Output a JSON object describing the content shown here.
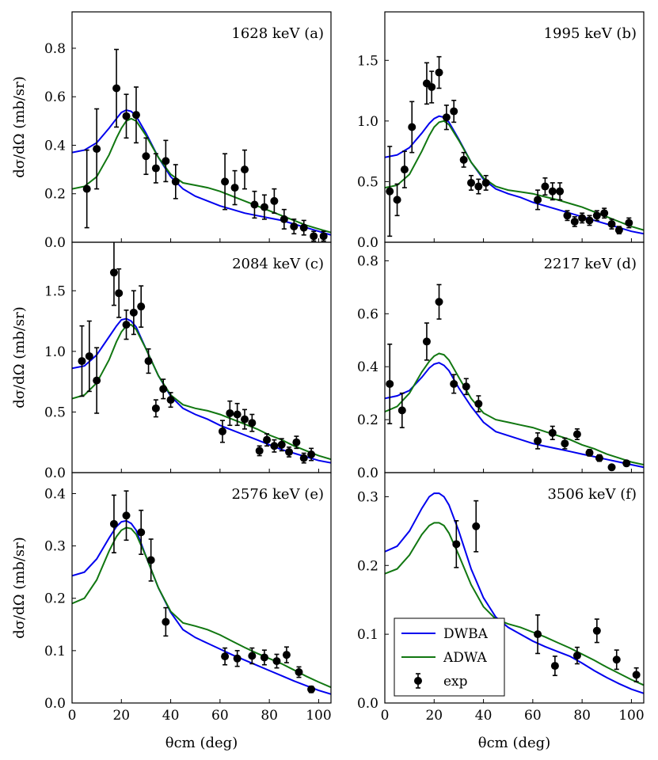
{
  "chart_data": {
    "type": "multi-panel scatter+line",
    "shared_xlabel": "θcm (deg)",
    "shared_ylabel": "dσ/dΩ (mb/sr)",
    "xlim": [
      0,
      105
    ],
    "xticks": [
      0,
      20,
      40,
      60,
      80,
      100
    ],
    "series_names": {
      "dwba": "DWBA",
      "adwa": "ADWA",
      "exp": "exp"
    },
    "colors": {
      "dwba": "#0000ee",
      "adwa": "#117711",
      "exp": "#000000"
    },
    "panels": [
      {
        "label": "1628 keV (a)",
        "ylim": [
          0,
          0.95
        ],
        "yticks": [
          0.0,
          0.2,
          0.4,
          0.6,
          0.8
        ],
        "ytick_labels": [
          "0.0",
          "0.2",
          "0.4",
          "0.6",
          "0.8"
        ],
        "dwba": {
          "x": [
            0,
            5,
            10,
            15,
            18,
            20,
            22,
            24,
            26,
            30,
            35,
            40,
            45,
            50,
            55,
            60,
            65,
            70,
            75,
            80,
            85,
            90,
            95,
            100,
            105
          ],
          "y": [
            0.37,
            0.38,
            0.41,
            0.47,
            0.51,
            0.535,
            0.545,
            0.54,
            0.52,
            0.45,
            0.35,
            0.27,
            0.22,
            0.19,
            0.17,
            0.15,
            0.135,
            0.12,
            0.11,
            0.1,
            0.09,
            0.075,
            0.06,
            0.045,
            0.03
          ]
        },
        "adwa": {
          "x": [
            0,
            5,
            10,
            15,
            18,
            20,
            22,
            24,
            26,
            30,
            35,
            40,
            45,
            50,
            55,
            60,
            65,
            70,
            75,
            80,
            85,
            90,
            95,
            100,
            105
          ],
          "y": [
            0.22,
            0.23,
            0.27,
            0.36,
            0.43,
            0.47,
            0.5,
            0.51,
            0.5,
            0.44,
            0.35,
            0.28,
            0.245,
            0.235,
            0.225,
            0.21,
            0.19,
            0.17,
            0.15,
            0.13,
            0.11,
            0.09,
            0.07,
            0.055,
            0.04
          ]
        },
        "exp": {
          "x": [
            6,
            10,
            18,
            22,
            26,
            30,
            34,
            38,
            42,
            62,
            66,
            70,
            74,
            78,
            82,
            86,
            90,
            94,
            98,
            102
          ],
          "y": [
            0.22,
            0.385,
            0.635,
            0.52,
            0.525,
            0.355,
            0.305,
            0.335,
            0.25,
            0.25,
            0.225,
            0.3,
            0.155,
            0.145,
            0.17,
            0.095,
            0.065,
            0.06,
            0.025,
            0.025
          ],
          "err": [
            0.16,
            0.165,
            0.16,
            0.09,
            0.115,
            0.075,
            0.06,
            0.085,
            0.07,
            0.115,
            0.07,
            0.08,
            0.055,
            0.05,
            0.05,
            0.04,
            0.03,
            0.03,
            0.02,
            0.02
          ]
        }
      },
      {
        "label": "1995 keV (b)",
        "ylim": [
          0,
          1.9
        ],
        "yticks": [
          0.0,
          0.5,
          1.0,
          1.5
        ],
        "ytick_labels": [
          "0.0",
          "0.5",
          "1.0",
          "1.5"
        ],
        "dwba": {
          "x": [
            0,
            5,
            10,
            15,
            18,
            20,
            22,
            24,
            26,
            30,
            35,
            40,
            45,
            50,
            55,
            60,
            65,
            70,
            75,
            80,
            85,
            90,
            95,
            100,
            105
          ],
          "y": [
            0.7,
            0.72,
            0.78,
            0.9,
            0.98,
            1.02,
            1.04,
            1.03,
            0.99,
            0.85,
            0.66,
            0.52,
            0.44,
            0.4,
            0.37,
            0.33,
            0.3,
            0.27,
            0.24,
            0.21,
            0.18,
            0.15,
            0.12,
            0.09,
            0.07
          ]
        },
        "adwa": {
          "x": [
            0,
            5,
            10,
            15,
            18,
            20,
            22,
            24,
            26,
            30,
            35,
            40,
            45,
            50,
            55,
            60,
            65,
            70,
            75,
            80,
            85,
            90,
            95,
            100,
            105
          ],
          "y": [
            0.45,
            0.47,
            0.56,
            0.75,
            0.88,
            0.95,
            0.99,
            1.0,
            0.97,
            0.84,
            0.66,
            0.53,
            0.46,
            0.43,
            0.415,
            0.4,
            0.375,
            0.35,
            0.32,
            0.29,
            0.25,
            0.21,
            0.17,
            0.13,
            0.1
          ]
        },
        "exp": {
          "x": [
            2,
            5,
            8,
            11,
            17,
            19,
            22,
            25,
            28,
            32,
            35,
            38,
            41,
            62,
            65,
            68,
            71,
            74,
            77,
            80,
            83,
            86,
            89,
            92,
            95,
            99
          ],
          "y": [
            0.42,
            0.35,
            0.6,
            0.95,
            1.31,
            1.28,
            1.4,
            1.03,
            1.08,
            0.68,
            0.49,
            0.46,
            0.49,
            0.35,
            0.46,
            0.42,
            0.42,
            0.22,
            0.17,
            0.2,
            0.18,
            0.22,
            0.24,
            0.15,
            0.1,
            0.16
          ],
          "err": [
            0.37,
            0.13,
            0.15,
            0.21,
            0.17,
            0.13,
            0.13,
            0.1,
            0.09,
            0.06,
            0.06,
            0.06,
            0.06,
            0.08,
            0.07,
            0.07,
            0.07,
            0.04,
            0.04,
            0.04,
            0.04,
            0.04,
            0.04,
            0.04,
            0.03,
            0.04
          ]
        }
      },
      {
        "label": "2084 keV (c)",
        "ylim": [
          0,
          1.9
        ],
        "yticks": [
          0.0,
          0.5,
          1.0,
          1.5
        ],
        "ytick_labels": [
          "0.0",
          "0.5",
          "1.0",
          "1.5"
        ],
        "dwba": {
          "x": [
            0,
            5,
            10,
            15,
            18,
            20,
            22,
            24,
            26,
            30,
            35,
            40,
            45,
            50,
            55,
            60,
            65,
            70,
            75,
            80,
            85,
            90,
            95,
            100,
            105
          ],
          "y": [
            0.86,
            0.88,
            0.97,
            1.12,
            1.21,
            1.26,
            1.27,
            1.25,
            1.2,
            1.02,
            0.8,
            0.63,
            0.53,
            0.48,
            0.44,
            0.39,
            0.35,
            0.31,
            0.27,
            0.23,
            0.19,
            0.16,
            0.13,
            0.1,
            0.08
          ]
        },
        "adwa": {
          "x": [
            0,
            5,
            10,
            15,
            18,
            20,
            22,
            24,
            26,
            30,
            35,
            40,
            45,
            50,
            55,
            60,
            65,
            70,
            75,
            80,
            85,
            90,
            95,
            100,
            105
          ],
          "y": [
            0.61,
            0.64,
            0.74,
            0.93,
            1.08,
            1.16,
            1.21,
            1.22,
            1.18,
            1.02,
            0.8,
            0.64,
            0.56,
            0.53,
            0.51,
            0.48,
            0.44,
            0.4,
            0.36,
            0.31,
            0.27,
            0.22,
            0.18,
            0.14,
            0.11
          ]
        },
        "exp": {
          "x": [
            4,
            7,
            10,
            17,
            19,
            22,
            25,
            28,
            31,
            34,
            37,
            40,
            61,
            64,
            67,
            70,
            73,
            76,
            79,
            82,
            85,
            88,
            91,
            94,
            97
          ],
          "y": [
            0.92,
            0.96,
            0.76,
            1.65,
            1.48,
            1.22,
            1.32,
            1.37,
            0.92,
            0.53,
            0.69,
            0.6,
            0.34,
            0.49,
            0.48,
            0.44,
            0.41,
            0.18,
            0.27,
            0.22,
            0.23,
            0.17,
            0.25,
            0.12,
            0.15
          ]
        },
        "exp_err": [
          0.29,
          0.29,
          0.27,
          0.27,
          0.2,
          0.12,
          0.18,
          0.17,
          0.1,
          0.07,
          0.08,
          0.06,
          0.09,
          0.1,
          0.09,
          0.08,
          0.07,
          0.04,
          0.05,
          0.05,
          0.05,
          0.04,
          0.05,
          0.04,
          0.05
        ]
      },
      {
        "label": "2217 keV (d)",
        "ylim": [
          0,
          0.87
        ],
        "yticks": [
          0.0,
          0.2,
          0.4,
          0.6,
          0.8
        ],
        "ytick_labels": [
          "0.0",
          "0.2",
          "0.4",
          "0.6",
          "0.8"
        ],
        "dwba": {
          "x": [
            0,
            5,
            10,
            15,
            18,
            20,
            22,
            24,
            26,
            30,
            35,
            40,
            45,
            50,
            55,
            60,
            65,
            70,
            75,
            80,
            85,
            90,
            95,
            100,
            105
          ],
          "y": [
            0.28,
            0.29,
            0.31,
            0.36,
            0.395,
            0.41,
            0.415,
            0.405,
            0.385,
            0.32,
            0.25,
            0.19,
            0.155,
            0.14,
            0.125,
            0.11,
            0.1,
            0.09,
            0.08,
            0.07,
            0.06,
            0.05,
            0.04,
            0.03,
            0.02
          ]
        },
        "adwa": {
          "x": [
            0,
            5,
            10,
            15,
            18,
            20,
            22,
            24,
            26,
            30,
            35,
            40,
            45,
            50,
            55,
            60,
            65,
            70,
            75,
            80,
            85,
            90,
            95,
            100,
            105
          ],
          "y": [
            0.23,
            0.25,
            0.3,
            0.38,
            0.42,
            0.44,
            0.45,
            0.445,
            0.425,
            0.36,
            0.28,
            0.225,
            0.2,
            0.19,
            0.18,
            0.17,
            0.155,
            0.14,
            0.125,
            0.105,
            0.09,
            0.07,
            0.055,
            0.04,
            0.03
          ]
        },
        "exp": {
          "x": [
            2,
            7,
            17,
            22,
            28,
            33,
            38,
            62,
            68,
            73,
            78,
            83,
            87,
            92,
            98
          ],
          "y": [
            0.335,
            0.235,
            0.495,
            0.645,
            0.335,
            0.325,
            0.26,
            0.12,
            0.15,
            0.11,
            0.145,
            0.075,
            0.055,
            0.02,
            0.035
          ],
          "err": [
            0.15,
            0.065,
            0.07,
            0.065,
            0.035,
            0.03,
            0.03,
            0.03,
            0.025,
            0.02,
            0.02,
            0.012,
            0.012,
            0.008,
            0.01
          ]
        }
      },
      {
        "label": "2576 keV (e)",
        "ylim": [
          0,
          0.44
        ],
        "yticks": [
          0.0,
          0.1,
          0.2,
          0.3,
          0.4
        ],
        "ytick_labels": [
          "0.0",
          "0.1",
          "0.2",
          "0.3",
          "0.4"
        ],
        "dwba": {
          "x": [
            0,
            5,
            10,
            15,
            18,
            20,
            22,
            24,
            26,
            30,
            35,
            40,
            45,
            50,
            55,
            60,
            65,
            70,
            75,
            80,
            85,
            90,
            95,
            100,
            105
          ],
          "y": [
            0.243,
            0.25,
            0.275,
            0.315,
            0.337,
            0.346,
            0.348,
            0.343,
            0.33,
            0.28,
            0.22,
            0.173,
            0.14,
            0.125,
            0.114,
            0.103,
            0.092,
            0.082,
            0.072,
            0.062,
            0.052,
            0.042,
            0.033,
            0.024,
            0.017
          ]
        },
        "adwa": {
          "x": [
            0,
            5,
            10,
            15,
            18,
            20,
            22,
            24,
            26,
            30,
            35,
            40,
            45,
            50,
            55,
            60,
            65,
            70,
            75,
            80,
            85,
            90,
            95,
            100,
            105
          ],
          "y": [
            0.19,
            0.2,
            0.235,
            0.29,
            0.318,
            0.33,
            0.335,
            0.333,
            0.322,
            0.28,
            0.22,
            0.175,
            0.153,
            0.147,
            0.14,
            0.13,
            0.118,
            0.106,
            0.095,
            0.085,
            0.075,
            0.063,
            0.051,
            0.04,
            0.03
          ]
        },
        "exp": {
          "x": [
            17,
            22,
            28,
            32,
            38,
            62,
            67,
            73,
            78,
            83,
            87,
            92,
            97
          ],
          "y": [
            0.342,
            0.358,
            0.326,
            0.273,
            0.155,
            0.089,
            0.085,
            0.09,
            0.087,
            0.08,
            0.092,
            0.059,
            0.026
          ],
          "err": [
            0.055,
            0.047,
            0.042,
            0.04,
            0.027,
            0.016,
            0.015,
            0.015,
            0.014,
            0.013,
            0.015,
            0.01,
            0.006
          ]
        }
      },
      {
        "label": "3506 keV (f)",
        "ylim": [
          0,
          0.335
        ],
        "yticks": [
          0.0,
          0.1,
          0.2,
          0.3
        ],
        "ytick_labels": [
          "0.0",
          "0.1",
          "0.2",
          "0.3"
        ],
        "dwba": {
          "x": [
            0,
            5,
            10,
            15,
            18,
            20,
            22,
            24,
            26,
            30,
            35,
            40,
            45,
            50,
            55,
            60,
            65,
            70,
            75,
            80,
            85,
            90,
            95,
            100,
            105
          ],
          "y": [
            0.22,
            0.228,
            0.25,
            0.283,
            0.3,
            0.305,
            0.305,
            0.3,
            0.288,
            0.25,
            0.195,
            0.153,
            0.125,
            0.11,
            0.1,
            0.09,
            0.082,
            0.075,
            0.068,
            0.058,
            0.047,
            0.037,
            0.028,
            0.02,
            0.014
          ]
        },
        "adwa": {
          "x": [
            0,
            5,
            10,
            15,
            18,
            20,
            22,
            24,
            26,
            30,
            35,
            40,
            45,
            50,
            55,
            60,
            65,
            70,
            75,
            80,
            85,
            90,
            95,
            100,
            105
          ],
          "y": [
            0.188,
            0.195,
            0.215,
            0.245,
            0.258,
            0.262,
            0.262,
            0.258,
            0.247,
            0.215,
            0.172,
            0.14,
            0.122,
            0.115,
            0.11,
            0.103,
            0.096,
            0.088,
            0.08,
            0.071,
            0.062,
            0.052,
            0.043,
            0.034,
            0.026
          ]
        },
        "exp": {
          "x": [
            29,
            37,
            62,
            69,
            78,
            86,
            94,
            102
          ],
          "y": [
            0.231,
            0.257,
            0.1,
            0.054,
            0.069,
            0.105,
            0.063,
            0.041
          ],
          "err": [
            0.034,
            0.037,
            0.028,
            0.014,
            0.012,
            0.017,
            0.014,
            0.01
          ]
        }
      }
    ]
  }
}
